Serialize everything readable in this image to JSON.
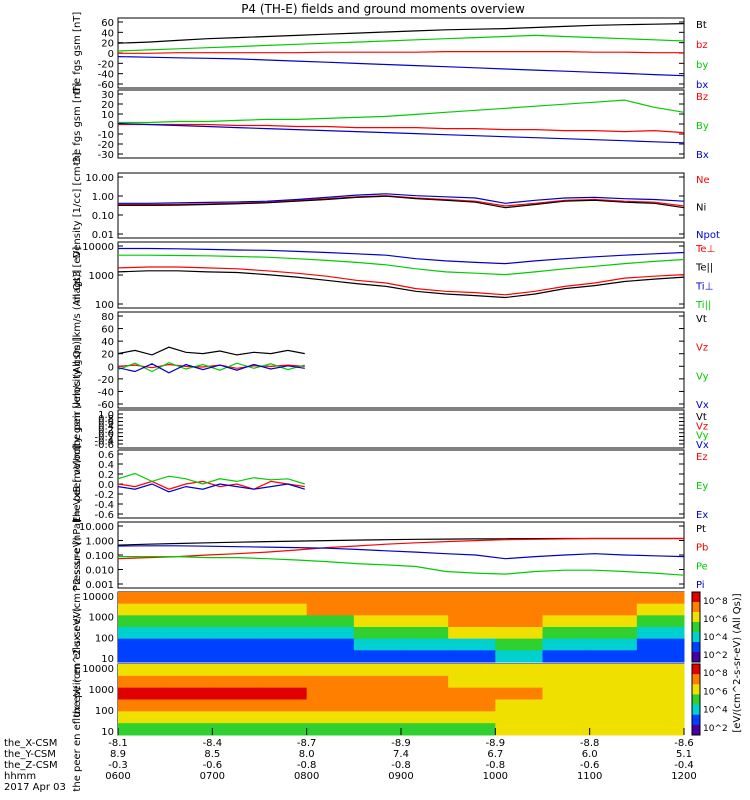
{
  "title": "P4 (TH-E) fields and ground moments overview",
  "chart_data": [
    {
      "type": "line",
      "ylabel": "the fgs gsm [nT]",
      "yticks": [
        "60",
        "40",
        "20",
        "0",
        "-20",
        "-40",
        "-60"
      ],
      "ylim": [
        -60,
        65
      ],
      "log": false,
      "series": [
        {
          "name": "Bt",
          "color": "#000000",
          "values": [
            20,
            22,
            25,
            28,
            30,
            32,
            34,
            36,
            38,
            40,
            42,
            44,
            45,
            46,
            48,
            50,
            52,
            53,
            54,
            55
          ]
        },
        {
          "name": "bz",
          "color": "#ff0000",
          "values": [
            2,
            2,
            3,
            3,
            3,
            3,
            3,
            4,
            4,
            4,
            4,
            5,
            5,
            5,
            5,
            5,
            4,
            4,
            3,
            3
          ]
        },
        {
          "name": "by",
          "color": "#00cc00",
          "values": [
            6,
            8,
            10,
            12,
            14,
            16,
            18,
            20,
            22,
            24,
            26,
            28,
            30,
            32,
            34,
            32,
            30,
            28,
            26,
            24
          ]
        },
        {
          "name": "bx",
          "color": "#0000cc",
          "values": [
            -4,
            -5,
            -6,
            -7,
            -8,
            -10,
            -12,
            -14,
            -16,
            -18,
            -20,
            -22,
            -24,
            -26,
            -28,
            -30,
            -32,
            -34,
            -36,
            -38
          ]
        }
      ]
    },
    {
      "type": "line",
      "ylabel": "the fgs gsm [nT]",
      "yticks": [
        "30",
        "20",
        "10",
        "0",
        "-10",
        "-20",
        "-30"
      ],
      "ylim": [
        -35,
        32
      ],
      "log": false,
      "series": [
        {
          "name": "Bz",
          "color": "#ff0000",
          "values": [
            -2,
            -2,
            -2,
            -2,
            -3,
            -3,
            -4,
            -4,
            -5,
            -5,
            -5,
            -6,
            -6,
            -7,
            -7,
            -8,
            -8,
            -9,
            -8,
            -10
          ]
        },
        {
          "name": "By",
          "color": "#00cc00",
          "values": [
            0,
            0,
            1,
            1,
            2,
            3,
            3,
            4,
            5,
            6,
            8,
            10,
            12,
            14,
            16,
            18,
            20,
            22,
            15,
            10
          ]
        },
        {
          "name": "Bx",
          "color": "#0000cc",
          "values": [
            -1,
            -2,
            -3,
            -4,
            -5,
            -6,
            -7,
            -8,
            -9,
            -10,
            -11,
            -12,
            -13,
            -14,
            -15,
            -16,
            -17,
            -18,
            -19,
            -20
          ]
        }
      ]
    },
    {
      "type": "line",
      "ylabel": "Density [1/cc] [cm-3]",
      "yticks": [
        "10.00",
        "1.00",
        "0.10",
        "0.01"
      ],
      "ylim": [
        0.01,
        10
      ],
      "log": true,
      "series": [
        {
          "name": "Ne",
          "color": "#ff0000",
          "values": [
            0.35,
            0.35,
            0.36,
            0.38,
            0.4,
            0.45,
            0.55,
            0.65,
            0.8,
            0.9,
            0.7,
            0.6,
            0.5,
            0.3,
            0.4,
            0.55,
            0.6,
            0.5,
            0.45,
            0.3
          ]
        },
        {
          "name": "Ni",
          "color": "#000000",
          "values": [
            0.32,
            0.32,
            0.33,
            0.35,
            0.38,
            0.42,
            0.5,
            0.6,
            0.75,
            0.85,
            0.65,
            0.55,
            0.45,
            0.25,
            0.35,
            0.5,
            0.55,
            0.45,
            0.4,
            0.25
          ]
        },
        {
          "name": "Npot",
          "color": "#0000cc",
          "values": [
            0.4,
            0.4,
            0.42,
            0.44,
            0.46,
            0.5,
            0.6,
            0.75,
            0.95,
            1.1,
            0.9,
            0.8,
            0.7,
            0.4,
            0.55,
            0.7,
            0.75,
            0.65,
            0.6,
            0.5
          ]
        }
      ]
    },
    {
      "type": "line",
      "ylabel": "magt3 [eV]",
      "yticks": [
        "10000",
        "1000",
        "100"
      ],
      "ylim": [
        50,
        12000
      ],
      "log": true,
      "series": [
        {
          "name": "Te⊥",
          "color": "#ff0000",
          "values": [
            1400,
            1500,
            1500,
            1400,
            1300,
            1100,
            900,
            700,
            500,
            400,
            250,
            200,
            180,
            150,
            200,
            300,
            400,
            600,
            700,
            800
          ]
        },
        {
          "name": "Te||",
          "color": "#000000",
          "values": [
            1000,
            1100,
            1100,
            1000,
            950,
            800,
            650,
            500,
            380,
            300,
            200,
            160,
            140,
            120,
            160,
            250,
            320,
            450,
            550,
            650
          ]
        },
        {
          "name": "Ti⊥",
          "color": "#0000cc",
          "values": [
            7000,
            7000,
            6800,
            6500,
            6200,
            6000,
            5500,
            5000,
            4500,
            4000,
            3000,
            2500,
            2200,
            2000,
            2500,
            3000,
            3500,
            4000,
            4500,
            5000
          ]
        },
        {
          "name": "Ti||",
          "color": "#00cc00",
          "values": [
            4000,
            4000,
            3900,
            3800,
            3600,
            3400,
            3000,
            2600,
            2200,
            1800,
            1300,
            1000,
            900,
            800,
            1000,
            1300,
            1600,
            2000,
            2400,
            2800
          ]
        }
      ]
    },
    {
      "type": "line",
      "ylabel": "the peir velocity gsm [km/s (All Qs)]",
      "yticks": [
        "80",
        "60",
        "40",
        "20",
        "0",
        "-20",
        "-40",
        "-60"
      ],
      "ylim": [
        -65,
        85
      ],
      "log": false,
      "xextent": 0.33,
      "series": [
        {
          "name": "Vt",
          "color": "#000000",
          "values": [
            20,
            25,
            18,
            30,
            22,
            20,
            24,
            18,
            22,
            20,
            25,
            20
          ]
        },
        {
          "name": "Vz",
          "color": "#ff0000",
          "values": [
            0,
            2,
            -2,
            3,
            0,
            -1,
            2,
            -3,
            1,
            0,
            2,
            0
          ]
        },
        {
          "name": "Vy",
          "color": "#00cc00",
          "values": [
            -5,
            5,
            -8,
            6,
            -4,
            3,
            -6,
            5,
            -3,
            4,
            -5,
            2
          ]
        },
        {
          "name": "Vx",
          "color": "#0000cc",
          "values": [
            -2,
            -8,
            4,
            -10,
            3,
            -5,
            2,
            -6,
            3,
            -4,
            1,
            -3
          ]
        }
      ]
    },
    {
      "type": "line",
      "ylabel": "the peer velocity gsm [km/s (All Qs)]",
      "yticks": [
        "1.0",
        "0.8",
        "0.6",
        "0.4",
        "0.2",
        "0.0",
        "-0.2",
        "-0.4",
        "-0.6"
      ],
      "ylim": [
        -0.65,
        1.05
      ],
      "log": false,
      "series": [
        {
          "name": "Vt",
          "color": "#000000",
          "values": []
        },
        {
          "name": "Vz",
          "color": "#ff0000",
          "values": []
        },
        {
          "name": "Vy",
          "color": "#00cc00",
          "values": []
        },
        {
          "name": "Vx",
          "color": "#0000cc",
          "values": []
        }
      ]
    },
    {
      "type": "line",
      "ylabel": "E=-VxB [mV/m]",
      "yticks": [
        "0.6",
        "0.4",
        "0.2",
        "0.0",
        "-0.2",
        "-0.4",
        "-0.6"
      ],
      "ylim": [
        -0.65,
        0.65
      ],
      "log": false,
      "xextent": 0.33,
      "series": [
        {
          "name": "Ez",
          "color": "#ff0000",
          "values": [
            0.0,
            -0.05,
            0.05,
            -0.1,
            0.0,
            0.05,
            -0.05,
            0.0,
            -0.1,
            0.05,
            0.0,
            -0.05
          ]
        },
        {
          "name": "Ey",
          "color": "#00cc00",
          "values": [
            0.1,
            0.2,
            0.05,
            0.15,
            0.1,
            0.0,
            0.1,
            0.05,
            0.12,
            0.08,
            0.1,
            0.0
          ]
        },
        {
          "name": "Ex",
          "color": "#0000cc",
          "values": [
            -0.05,
            -0.1,
            0.0,
            -0.15,
            -0.05,
            -0.1,
            0.0,
            -0.05,
            -0.1,
            -0.05,
            0.0,
            -0.1
          ]
        }
      ]
    },
    {
      "type": "line",
      "ylabel": "Pressure [nPa]",
      "yticks": [
        "10.000",
        "1.000",
        "0.100",
        "0.010",
        "0.001"
      ],
      "ylim": [
        0.001,
        10
      ],
      "log": true,
      "series": [
        {
          "name": "Pt",
          "color": "#000000",
          "values": [
            0.4,
            0.45,
            0.5,
            0.55,
            0.6,
            0.65,
            0.7,
            0.75,
            0.8,
            0.85,
            0.9,
            0.92,
            0.95,
            0.96,
            0.98,
            1.0,
            1.0,
            1.0,
            1.0,
            1.0
          ]
        },
        {
          "name": "Pb",
          "color": "#ff0000",
          "values": [
            0.06,
            0.07,
            0.08,
            0.1,
            0.12,
            0.15,
            0.2,
            0.28,
            0.35,
            0.45,
            0.55,
            0.65,
            0.75,
            0.85,
            0.9,
            0.95,
            1.0,
            1.0,
            1.0,
            1.0
          ]
        },
        {
          "name": "Pe",
          "color": "#00cc00",
          "values": [
            0.08,
            0.08,
            0.08,
            0.07,
            0.07,
            0.06,
            0.05,
            0.04,
            0.03,
            0.025,
            0.02,
            0.01,
            0.008,
            0.007,
            0.01,
            0.012,
            0.012,
            0.01,
            0.008,
            0.006
          ]
        },
        {
          "name": "Pi",
          "color": "#0000cc",
          "values": [
            0.35,
            0.36,
            0.36,
            0.34,
            0.32,
            0.3,
            0.28,
            0.26,
            0.22,
            0.18,
            0.15,
            0.12,
            0.1,
            0.06,
            0.08,
            0.1,
            0.12,
            0.1,
            0.09,
            0.08
          ]
        }
      ]
    },
    {
      "type": "heatmap",
      "ylabel": "the peir en eflux eV/ (cm^2-s-sr-eV)",
      "yticks": [
        "10000",
        "1000",
        "100",
        "10"
      ],
      "ylim": [
        5,
        25000
      ],
      "colorbar_label": "[eV/(cm^2-s-sr-eV) (All Qs)]",
      "colorbar_ticks": [
        "10^8",
        "10^6",
        "10^4",
        "10^2"
      ],
      "bands": [
        [
          5,
          5,
          5,
          5,
          5,
          5,
          5,
          5,
          5,
          5,
          5,
          5
        ],
        [
          4,
          4,
          4,
          4,
          5,
          5,
          5,
          5,
          5,
          5,
          5,
          4
        ],
        [
          3,
          3,
          3,
          3,
          3,
          4,
          4,
          5,
          5,
          4,
          4,
          3
        ],
        [
          2,
          2,
          2,
          2,
          2,
          3,
          3,
          4,
          4,
          3,
          3,
          2
        ],
        [
          1,
          1,
          1,
          1,
          1,
          2,
          2,
          2,
          3,
          2,
          2,
          1
        ],
        [
          1,
          1,
          1,
          1,
          1,
          1,
          1,
          1,
          2,
          1,
          1,
          1
        ]
      ]
    },
    {
      "type": "heatmap",
      "ylabel": "the peer en eflux eV/ (cm^2-s-sr-eV)",
      "yticks": [
        "10000",
        "1000",
        "100",
        "10"
      ],
      "ylim": [
        5,
        25000
      ],
      "colorbar_label": "[eV/(cm^2-s-sr-eV) (All Qs)]",
      "colorbar_ticks": [
        "10^8",
        "10^6",
        "10^4",
        "10^2"
      ],
      "bands": [
        [
          4,
          4,
          4,
          4,
          4,
          4,
          4,
          4,
          4,
          4,
          4,
          4
        ],
        [
          5,
          5,
          5,
          5,
          5,
          5,
          5,
          4,
          4,
          4,
          4,
          4
        ],
        [
          6,
          6,
          6,
          6,
          5,
          5,
          5,
          5,
          5,
          4,
          4,
          4
        ],
        [
          5,
          5,
          5,
          5,
          5,
          5,
          5,
          5,
          4,
          4,
          4,
          4
        ],
        [
          4,
          4,
          4,
          4,
          4,
          4,
          4,
          4,
          4,
          4,
          4,
          4
        ],
        [
          3,
          3,
          3,
          3,
          3,
          3,
          3,
          3,
          4,
          4,
          4,
          4
        ]
      ]
    }
  ],
  "x_axis": {
    "row_labels": [
      "the_X-CSM",
      "the_Y-CSM",
      "the_Z-CSM",
      "hhmm",
      "2017 Apr 03"
    ],
    "ticks": [
      {
        "x": "-8.1",
        "y": "8.9",
        "z": "-0.3",
        "t": "0600"
      },
      {
        "x": "-8.4",
        "y": "8.5",
        "z": "-0.6",
        "t": "0700"
      },
      {
        "x": "-8.7",
        "y": "8.0",
        "z": "-0.8",
        "t": "0800"
      },
      {
        "x": "-8.9",
        "y": "7.4",
        "z": "-0.8",
        "t": "0900"
      },
      {
        "x": "-8.9",
        "y": "6.7",
        "z": "-0.8",
        "t": "1000"
      },
      {
        "x": "-8.8",
        "y": "6.0",
        "z": "-0.6",
        "t": "1100"
      },
      {
        "x": "-8.6",
        "y": "5.1",
        "z": "-0.4",
        "t": "1200"
      }
    ]
  }
}
